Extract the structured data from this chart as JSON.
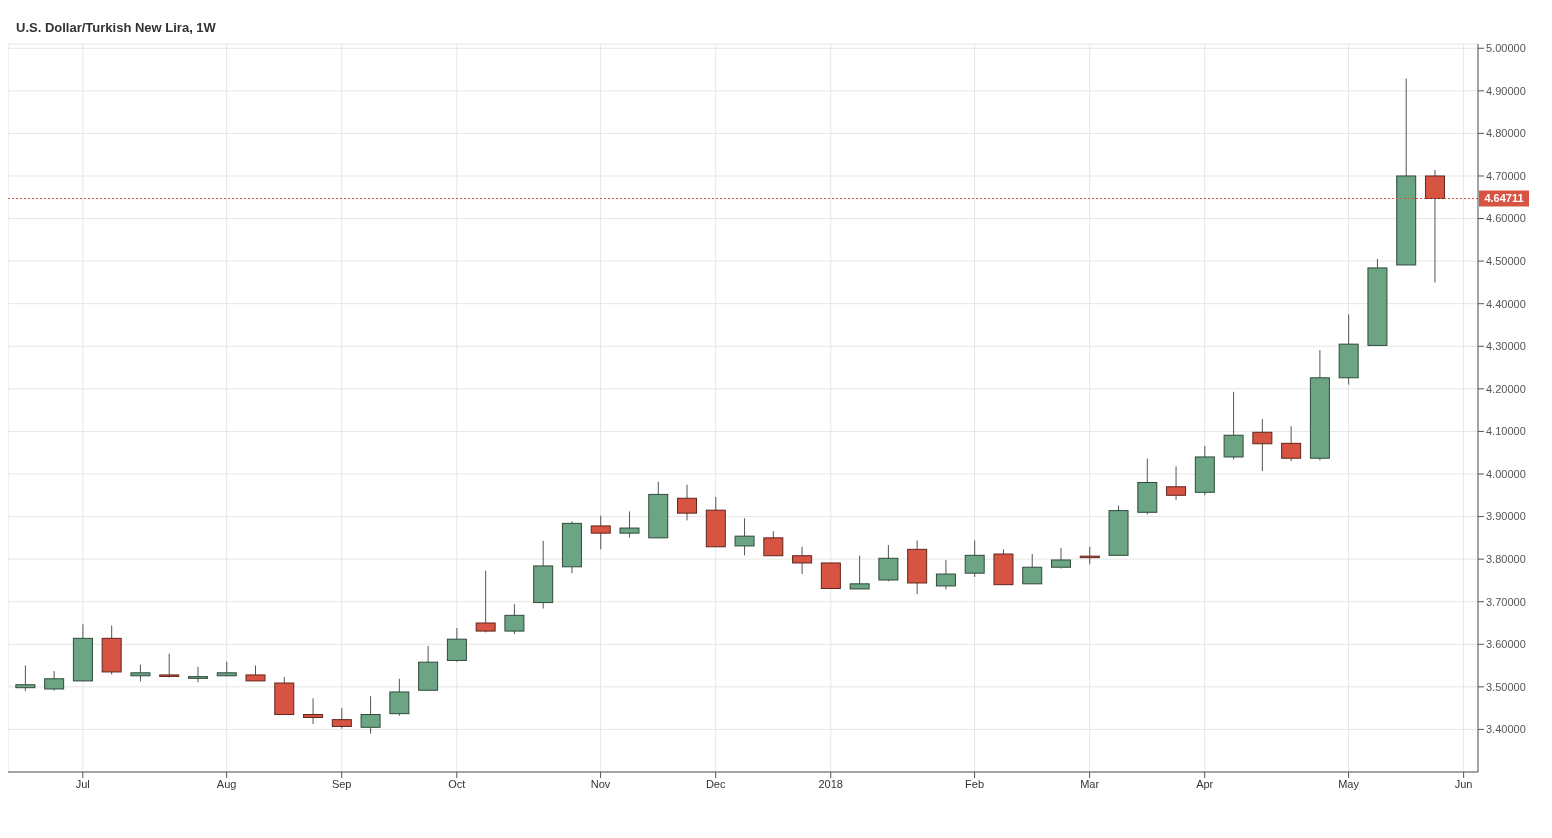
{
  "chart_data": {
    "type": "candlestick",
    "title": "U.S. Dollar/Turkish New Lira, 1W",
    "categories": [
      null,
      null,
      "Jul",
      null,
      null,
      null,
      null,
      "Aug",
      null,
      null,
      null,
      "Sep",
      null,
      null,
      null,
      "Oct",
      null,
      null,
      null,
      null,
      "Nov",
      null,
      null,
      null,
      "Dec",
      null,
      null,
      null,
      "2018",
      null,
      null,
      null,
      null,
      "Feb",
      null,
      null,
      null,
      "Mar",
      null,
      null,
      null,
      "Apr",
      null,
      null,
      null,
      null,
      "May",
      null,
      null,
      null,
      "Jun"
    ],
    "ohlc": [
      [
        3.498,
        3.55,
        3.49,
        3.505
      ],
      [
        3.495,
        3.537,
        3.491,
        3.519
      ],
      [
        3.514,
        3.647,
        3.514,
        3.614
      ],
      [
        3.614,
        3.644,
        3.529,
        3.535
      ],
      [
        3.526,
        3.552,
        3.513,
        3.533
      ],
      [
        3.528,
        3.578,
        3.522,
        3.526
      ],
      [
        3.52,
        3.547,
        3.511,
        3.524
      ],
      [
        3.526,
        3.559,
        3.526,
        3.533
      ],
      [
        3.528,
        3.55,
        3.514,
        3.514
      ],
      [
        3.509,
        3.523,
        3.435,
        3.435
      ],
      [
        3.435,
        3.473,
        3.413,
        3.428
      ],
      [
        3.423,
        3.45,
        3.402,
        3.407
      ],
      [
        3.405,
        3.478,
        3.39,
        3.435
      ],
      [
        3.437,
        3.519,
        3.432,
        3.488
      ],
      [
        3.492,
        3.596,
        3.492,
        3.558
      ],
      [
        3.562,
        3.638,
        3.559,
        3.612
      ],
      [
        3.65,
        3.773,
        3.628,
        3.631
      ],
      [
        3.631,
        3.694,
        3.624,
        3.668
      ],
      [
        3.698,
        3.843,
        3.684,
        3.784
      ],
      [
        3.782,
        3.889,
        3.767,
        3.884
      ],
      [
        3.878,
        3.902,
        3.823,
        3.861
      ],
      [
        3.861,
        3.912,
        3.851,
        3.873
      ],
      [
        3.85,
        3.982,
        3.85,
        3.952
      ],
      [
        3.943,
        3.975,
        3.891,
        3.908
      ],
      [
        3.915,
        3.946,
        3.829,
        3.829
      ],
      [
        3.831,
        3.896,
        3.809,
        3.854
      ],
      [
        3.85,
        3.866,
        3.808,
        3.808
      ],
      [
        3.808,
        3.829,
        3.765,
        3.791
      ],
      [
        3.791,
        3.791,
        3.731,
        3.731
      ],
      [
        3.73,
        3.808,
        3.73,
        3.742
      ],
      [
        3.751,
        3.833,
        3.748,
        3.802
      ],
      [
        3.823,
        3.844,
        3.718,
        3.744
      ],
      [
        3.737,
        3.798,
        3.729,
        3.765
      ],
      [
        3.767,
        3.844,
        3.758,
        3.809
      ],
      [
        3.812,
        3.823,
        3.74,
        3.74
      ],
      [
        3.742,
        3.812,
        3.742,
        3.781
      ],
      [
        3.781,
        3.826,
        3.778,
        3.798
      ],
      [
        3.807,
        3.829,
        3.788,
        3.805
      ],
      [
        3.809,
        3.926,
        3.809,
        3.914
      ],
      [
        3.91,
        4.036,
        3.905,
        3.98
      ],
      [
        3.97,
        4.018,
        3.939,
        3.95
      ],
      [
        3.957,
        4.066,
        3.95,
        4.04
      ],
      [
        4.04,
        4.193,
        4.034,
        4.091
      ],
      [
        4.098,
        4.129,
        4.007,
        4.071
      ],
      [
        4.072,
        4.112,
        4.03,
        4.037
      ],
      [
        4.037,
        4.291,
        4.032,
        4.226
      ],
      [
        4.226,
        4.375,
        4.21,
        4.305
      ],
      [
        4.302,
        4.505,
        4.302,
        4.484
      ],
      [
        4.491,
        4.929,
        4.491,
        4.7
      ],
      [
        4.7,
        4.714,
        4.45,
        4.64711
      ],
      null
    ],
    "colors": [
      "#6ba583",
      "#6ba583",
      "#6ba583",
      "#d75442",
      "#6ba583",
      "#d75442",
      "#6ba583",
      "#6ba583",
      "#d75442",
      "#d75442",
      "#d75442",
      "#d75442",
      "#6ba583",
      "#6ba583",
      "#6ba583",
      "#6ba583",
      "#d75442",
      "#6ba583",
      "#6ba583",
      "#6ba583",
      "#d75442",
      "#6ba583",
      "#6ba583",
      "#d75442",
      "#d75442",
      "#6ba583",
      "#d75442",
      "#d75442",
      "#d75442",
      "#6ba583",
      "#6ba583",
      "#d75442",
      "#6ba583",
      "#6ba583",
      "#d75442",
      "#6ba583",
      "#6ba583",
      "#d75442",
      "#6ba583",
      "#6ba583",
      "#d75442",
      "#6ba583",
      "#6ba583",
      "#d75442",
      "#d75442",
      "#6ba583",
      "#6ba583",
      "#6ba583",
      "#6ba583",
      "#d75442",
      null
    ],
    "ylim": [
      3.3,
      5.01
    ],
    "yticks": [
      {
        "value": 3.4,
        "label": "3.40000"
      },
      {
        "value": 3.5,
        "label": "3.50000"
      },
      {
        "value": 3.6,
        "label": "3.60000"
      },
      {
        "value": 3.7,
        "label": "3.70000"
      },
      {
        "value": 3.8,
        "label": "3.80000"
      },
      {
        "value": 3.9,
        "label": "3.90000"
      },
      {
        "value": 4.0,
        "label": "4.00000"
      },
      {
        "value": 4.1,
        "label": "4.10000"
      },
      {
        "value": 4.2,
        "label": "4.20000"
      },
      {
        "value": 4.3,
        "label": "4.30000"
      },
      {
        "value": 4.4,
        "label": "4.40000"
      },
      {
        "value": 4.5,
        "label": "4.50000"
      },
      {
        "value": 4.6,
        "label": "4.60000"
      },
      {
        "value": 4.7,
        "label": "4.70000"
      },
      {
        "value": 4.8,
        "label": "4.80000"
      },
      {
        "value": 4.9,
        "label": "4.90000"
      },
      {
        "value": 5.0,
        "label": "5.00000"
      }
    ],
    "ref_lines": [
      {
        "axis": "y",
        "value": 4.64711,
        "label": "4.64711",
        "color": "#d75442",
        "line_style": "dotted"
      }
    ],
    "grid": true
  }
}
